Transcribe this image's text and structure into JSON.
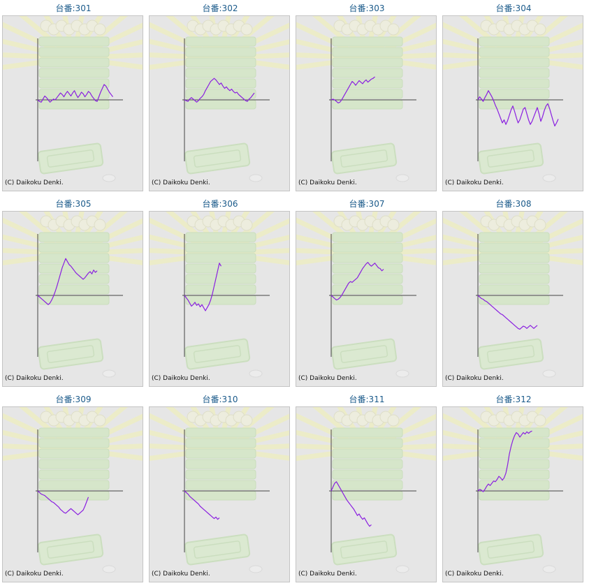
{
  "copyright": "(C) Daikoku Denki.",
  "colors": {
    "line": "#8a1fe0",
    "axis": "#444444",
    "title": "#1a5a8a",
    "panel": "#e6e6e6"
  },
  "chart_data": [
    {
      "type": "line",
      "title": "台番:301",
      "values": [
        0,
        -2,
        -3,
        1,
        5,
        3,
        0,
        -3,
        -1,
        1,
        0,
        3,
        6,
        9,
        7,
        4,
        8,
        11,
        8,
        5,
        9,
        12,
        7,
        3,
        6,
        10,
        8,
        4,
        7,
        11,
        9,
        5,
        2,
        -1,
        -2,
        4,
        10,
        15,
        20,
        18,
        14,
        10,
        7,
        4
      ]
    },
    {
      "type": "line",
      "title": "台番:302",
      "values": [
        0,
        -1,
        -2,
        1,
        3,
        1,
        -1,
        -3,
        -1,
        2,
        4,
        7,
        12,
        16,
        20,
        24,
        26,
        28,
        26,
        23,
        20,
        22,
        18,
        15,
        17,
        14,
        12,
        14,
        11,
        9,
        10,
        7,
        5,
        3,
        1,
        -1,
        -2,
        1,
        3,
        6,
        9
      ]
    },
    {
      "type": "line",
      "title": "台番:303",
      "values": [
        0,
        1,
        0,
        -2,
        -4,
        -3,
        0,
        4,
        8,
        12,
        16,
        20,
        24,
        22,
        19,
        22,
        25,
        23,
        21,
        24,
        26,
        23,
        25,
        27,
        28,
        30
      ]
    },
    {
      "type": "line",
      "title": "台番:304",
      "values": [
        0,
        4,
        1,
        -2,
        3,
        7,
        12,
        8,
        4,
        -1,
        -7,
        -12,
        -18,
        -24,
        -30,
        -26,
        -32,
        -27,
        -20,
        -13,
        -8,
        -15,
        -23,
        -30,
        -26,
        -19,
        -12,
        -10,
        -18,
        -26,
        -32,
        -28,
        -22,
        -16,
        -10,
        -18,
        -28,
        -22,
        -14,
        -8,
        -5,
        -11,
        -19,
        -27,
        -34,
        -30,
        -25
      ]
    },
    {
      "type": "line",
      "title": "台番:305",
      "values": [
        0,
        -2,
        -4,
        -6,
        -8,
        -10,
        -12,
        -10,
        -6,
        -1,
        5,
        12,
        20,
        28,
        36,
        42,
        48,
        44,
        40,
        38,
        35,
        32,
        29,
        27,
        25,
        23,
        21,
        23,
        26,
        29,
        31,
        28,
        33,
        30,
        32
      ]
    },
    {
      "type": "line",
      "title": "台番:306",
      "values": [
        0,
        -3,
        -6,
        -10,
        -14,
        -12,
        -9,
        -13,
        -11,
        -15,
        -12,
        -16,
        -20,
        -16,
        -12,
        -6,
        2,
        12,
        22,
        32,
        42,
        38
      ]
    },
    {
      "type": "line",
      "title": "台番:307",
      "values": [
        0,
        -2,
        -4,
        -6,
        -5,
        -3,
        0,
        4,
        8,
        12,
        16,
        18,
        17,
        19,
        21,
        23,
        27,
        31,
        35,
        38,
        41,
        43,
        40,
        38,
        40,
        42,
        39,
        36,
        35,
        32,
        34
      ]
    },
    {
      "type": "line",
      "title": "台番:308",
      "values": [
        0,
        -2,
        -4,
        -5,
        -7,
        -8,
        -10,
        -12,
        -14,
        -16,
        -18,
        -20,
        -22,
        -24,
        -25,
        -27,
        -29,
        -31,
        -33,
        -35,
        -37,
        -39,
        -41,
        -43,
        -44,
        -42,
        -40,
        -41,
        -43,
        -41,
        -39,
        -41,
        -43,
        -41,
        -39
      ]
    },
    {
      "type": "line",
      "title": "台番:309",
      "values": [
        0,
        -2,
        -4,
        -5,
        -6,
        -8,
        -10,
        -12,
        -14,
        -15,
        -17,
        -19,
        -21,
        -24,
        -26,
        -28,
        -29,
        -27,
        -25,
        -23,
        -25,
        -27,
        -29,
        -31,
        -29,
        -27,
        -25,
        -20,
        -14,
        -8
      ]
    },
    {
      "type": "line",
      "title": "台番:310",
      "values": [
        0,
        -2,
        -4,
        -7,
        -9,
        -11,
        -13,
        -15,
        -17,
        -20,
        -22,
        -24,
        -26,
        -28,
        -30,
        -32,
        -34,
        -36,
        -34,
        -37,
        -35
      ]
    },
    {
      "type": "line",
      "title": "台番:311",
      "values": [
        0,
        5,
        10,
        12,
        8,
        4,
        0,
        -4,
        -8,
        -12,
        -15,
        -18,
        -21,
        -24,
        -28,
        -32,
        -30,
        -34,
        -37,
        -35,
        -39,
        -43,
        -46,
        -44
      ]
    },
    {
      "type": "line",
      "title": "台番:312",
      "values": [
        0,
        2,
        1,
        -1,
        2,
        6,
        9,
        7,
        10,
        13,
        12,
        15,
        19,
        17,
        14,
        17,
        23,
        34,
        48,
        58,
        66,
        72,
        76,
        74,
        70,
        73,
        76,
        74,
        77,
        75,
        77,
        78
      ]
    }
  ]
}
